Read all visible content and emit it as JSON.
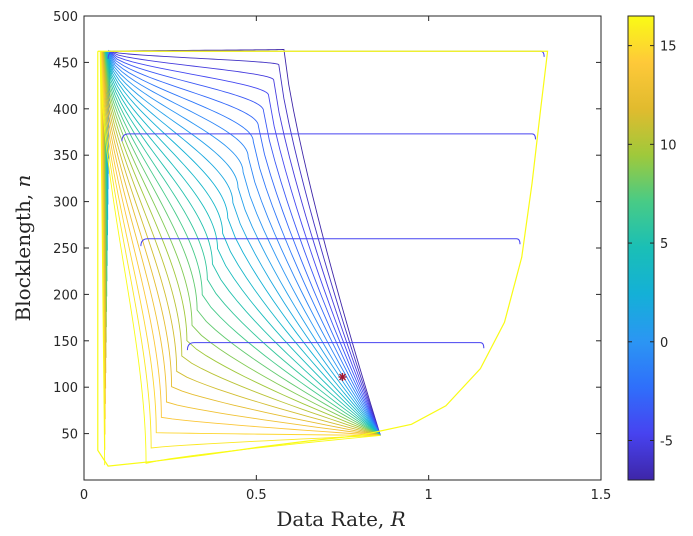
{
  "chart_data": {
    "type": "contour",
    "title": "",
    "xlabel": "Data Rate, ",
    "xlabel_var": "R",
    "ylabel": "Blocklength, ",
    "ylabel_var": "n",
    "xlim": [
      0,
      1.5
    ],
    "ylim": [
      0,
      500
    ],
    "xticks": [
      0,
      0.5,
      1,
      1.5
    ],
    "xtick_labels": [
      "0",
      "0.5",
      "1",
      "1.5"
    ],
    "yticks": [
      50,
      100,
      150,
      200,
      250,
      300,
      350,
      400,
      450,
      500
    ],
    "ytick_labels": [
      "50",
      "100",
      "150",
      "200",
      "250",
      "300",
      "350",
      "400",
      "450",
      "500"
    ],
    "grid": false,
    "colormap": "parula",
    "colorbar": {
      "clim": [
        -7,
        16.5
      ],
      "ticks": [
        -5,
        0,
        5,
        10,
        15
      ],
      "tick_labels": [
        "-5",
        "0",
        "5",
        "10",
        "15"
      ],
      "colors": [
        "#3e26a8",
        "#4743f0",
        "#2f6ffb",
        "#2b96f3",
        "#14b0d7",
        "#1abfb6",
        "#48cb86",
        "#9fc93b",
        "#e1bb2e",
        "#fec939",
        "#f9fb15"
      ]
    },
    "contour": {
      "level_count": 28,
      "outer_boundary": {
        "left_x": 0.04,
        "top_y": 462,
        "right_x": 1.345,
        "bottom_y": 12,
        "bottom_curve": [
          [
            0.07,
            15
          ],
          [
            0.2,
            20
          ],
          [
            0.35,
            27
          ],
          [
            0.5,
            35
          ],
          [
            0.65,
            42
          ],
          [
            0.8,
            48
          ]
        ],
        "right_curve": [
          [
            0.8,
            48
          ],
          [
            0.95,
            60
          ],
          [
            1.05,
            80
          ],
          [
            1.15,
            120
          ],
          [
            1.22,
            170
          ],
          [
            1.27,
            240
          ],
          [
            1.3,
            320
          ],
          [
            1.325,
            400
          ],
          [
            1.345,
            462
          ]
        ]
      },
      "convergence_point": [
        0.86,
        48
      ],
      "blue_shelves": [
        {
          "start_x": 0.07,
          "y": 462,
          "end_x": 1.335
        },
        {
          "start_x": 0.11,
          "y": 373,
          "end_x": 1.31
        },
        {
          "start_x": 0.165,
          "y": 260,
          "end_x": 1.265
        },
        {
          "start_x": 0.3,
          "y": 148,
          "end_x": 1.16
        }
      ]
    },
    "marker": {
      "x": 0.75,
      "y": 111,
      "symbol": "*",
      "color": "#a2142f"
    }
  }
}
